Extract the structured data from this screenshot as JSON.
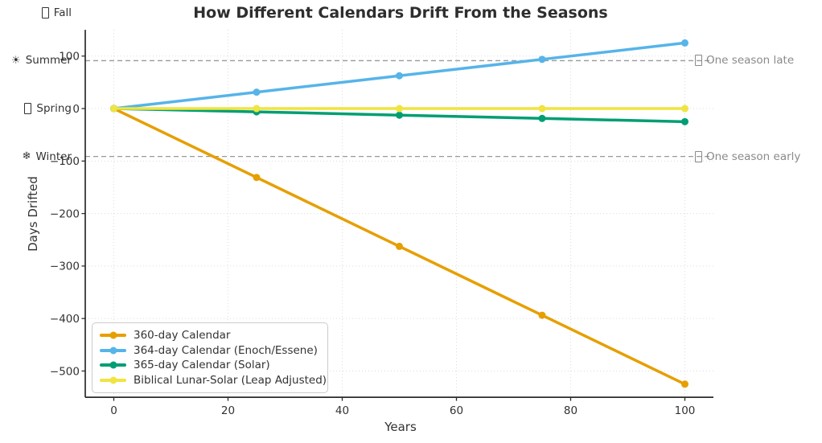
{
  "figure": {
    "title": "How Different Calendars Drift From the Seasons",
    "xlabel": "Years",
    "ylabel": "Days Drifted"
  },
  "chart_data": {
    "type": "line",
    "title": "How Different Calendars Drift From the Seasons",
    "xlabel": "Years",
    "ylabel": "Days Drifted",
    "x": [
      0,
      25,
      50,
      75,
      100
    ],
    "series": [
      {
        "name": "360-day Calendar",
        "color": "#E69F00",
        "values": [
          0,
          -131.25,
          -262.5,
          -393.75,
          -525
        ]
      },
      {
        "name": "364-day Calendar (Enoch/Essene)",
        "color": "#56B4E9",
        "values": [
          0,
          31.25,
          62.5,
          93.75,
          125
        ]
      },
      {
        "name": "365-day Calendar (Solar)",
        "color": "#009E73",
        "values": [
          0,
          -6.25,
          -12.5,
          -18.75,
          -25
        ]
      },
      {
        "name": "Biblical Lunar-Solar (Leap Adjusted)",
        "color": "#F0E442",
        "values": [
          0,
          0,
          0,
          0,
          0
        ]
      }
    ],
    "xticks": [
      0,
      20,
      40,
      60,
      80,
      100
    ],
    "xtick_labels": [
      "0",
      "20",
      "40",
      "60",
      "80",
      "100"
    ],
    "yticks": [
      100,
      0,
      -100,
      -200,
      -300,
      -400,
      -500
    ],
    "ytick_labels": [
      "100",
      "0",
      "−100",
      "−200",
      "−300",
      "−400",
      "−500"
    ],
    "xlim": [
      -5,
      105
    ],
    "ylim": [
      -550,
      150
    ],
    "grid": true,
    "legend_position": "lower left",
    "season_labels": [
      {
        "icon": "fall-leaf-icon",
        "glyph": "",
        "label": "Fall",
        "y": 182.5
      },
      {
        "icon": "sun-icon",
        "glyph": "☀",
        "label": "Summer",
        "y": 91.25
      },
      {
        "icon": "spring-blossom-icon",
        "glyph": "",
        "label": "Spring",
        "y": 0
      },
      {
        "icon": "snowflake-icon",
        "glyph": "❄",
        "label": "Winter",
        "y": -91.25
      }
    ],
    "thresholds": [
      {
        "icon": "alarm-clock-icon",
        "glyph": "",
        "label": "One season late",
        "y": 91.25
      },
      {
        "icon": "alarm-clock-icon",
        "glyph": "",
        "label": "One season early",
        "y": -91.25
      }
    ],
    "colors": {
      "grid": "#dcdcdc",
      "threshold_line": "#999999",
      "spine": "#2b2b2b",
      "tick_label": "#333333",
      "annotation_gray": "#8a8a8a",
      "title": "#2e2e2e"
    }
  }
}
